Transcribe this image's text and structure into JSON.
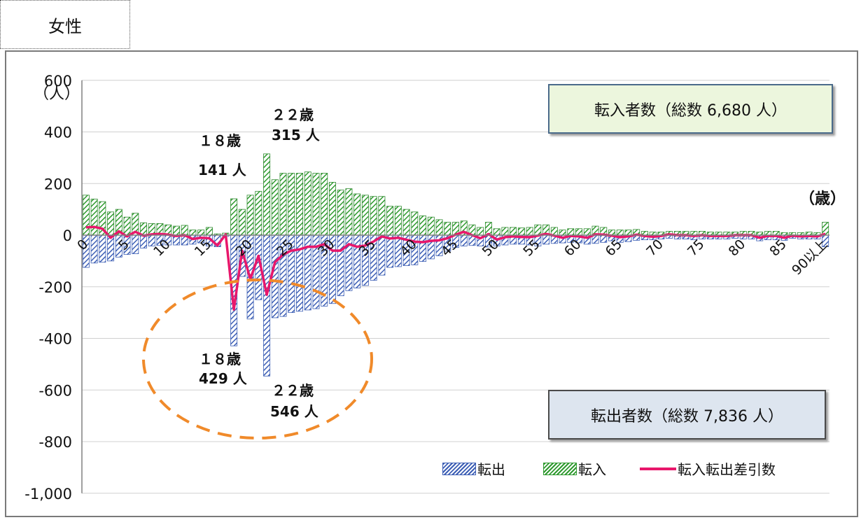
{
  "header": {
    "tab_label": "女性"
  },
  "chart_data": {
    "type": "bar",
    "y_unit": "（人）",
    "x_unit": "（歳）",
    "ylim": [
      -1000,
      600
    ],
    "y_ticks": [
      "600",
      "400",
      "200",
      "0",
      "-200",
      "-400",
      "-600",
      "-800",
      "-1,000"
    ],
    "x_tick_labels": [
      "0",
      "5",
      "10",
      "15",
      "20",
      "25",
      "30",
      "35",
      "40",
      "45",
      "50",
      "55",
      "60",
      "65",
      "70",
      "75",
      "80",
      "85",
      "90以上"
    ],
    "categories": [
      "0",
      "1",
      "2",
      "3",
      "4",
      "5",
      "6",
      "7",
      "8",
      "9",
      "10",
      "11",
      "12",
      "13",
      "14",
      "15",
      "16",
      "17",
      "18",
      "19",
      "20",
      "21",
      "22",
      "23",
      "24",
      "25",
      "26",
      "27",
      "28",
      "29",
      "30",
      "31",
      "32",
      "33",
      "34",
      "35",
      "36",
      "37",
      "38",
      "39",
      "40",
      "41",
      "42",
      "43",
      "44",
      "45",
      "46",
      "47",
      "48",
      "49",
      "50",
      "51",
      "52",
      "53",
      "54",
      "55",
      "56",
      "57",
      "58",
      "59",
      "60",
      "61",
      "62",
      "63",
      "64",
      "65",
      "66",
      "67",
      "68",
      "69",
      "70",
      "71",
      "72",
      "73",
      "74",
      "75",
      "76",
      "77",
      "78",
      "79",
      "80",
      "81",
      "82",
      "83",
      "84",
      "85",
      "86",
      "87",
      "88",
      "89",
      "90以上"
    ],
    "series": [
      {
        "name": "転出",
        "color": "#4a6fc0",
        "values": [
          -125,
          -108,
          -105,
          -100,
          -85,
          -75,
          -72,
          -50,
          -42,
          -40,
          -38,
          -38,
          -38,
          -35,
          -30,
          -42,
          -45,
          -5,
          -429,
          -160,
          -325,
          -250,
          -546,
          -320,
          -315,
          -300,
          -295,
          -290,
          -285,
          -275,
          -265,
          -235,
          -215,
          -205,
          -195,
          -175,
          -155,
          -125,
          -122,
          -118,
          -115,
          -102,
          -92,
          -80,
          -62,
          -48,
          -42,
          -40,
          -42,
          -46,
          -42,
          -38,
          -35,
          -35,
          -38,
          -42,
          -35,
          -32,
          -30,
          -28,
          -30,
          -35,
          -32,
          -28,
          -22,
          -28,
          -25,
          -20,
          -18,
          -18,
          -15,
          -12,
          -15,
          -15,
          -18,
          -15,
          -15,
          -15,
          -15,
          -12,
          -15,
          -15,
          -22,
          -18,
          -18,
          -20,
          -12,
          -15,
          -15,
          -15,
          -45
        ]
      },
      {
        "name": "転入",
        "color": "#3fa33f",
        "values": [
          155,
          140,
          130,
          90,
          100,
          70,
          85,
          48,
          45,
          45,
          40,
          35,
          38,
          20,
          20,
          30,
          5,
          8,
          141,
          100,
          155,
          170,
          315,
          215,
          240,
          240,
          240,
          245,
          240,
          240,
          205,
          175,
          180,
          160,
          155,
          150,
          150,
          112,
          112,
          100,
          90,
          75,
          70,
          60,
          50,
          50,
          55,
          40,
          30,
          50,
          25,
          30,
          30,
          28,
          30,
          40,
          40,
          30,
          20,
          25,
          25,
          25,
          35,
          30,
          20,
          20,
          20,
          22,
          15,
          12,
          12,
          15,
          15,
          15,
          15,
          15,
          12,
          12,
          12,
          12,
          15,
          15,
          12,
          15,
          15,
          10,
          10,
          10,
          12,
          10,
          50
        ]
      },
      {
        "name": "転入転出差引数",
        "color": "#e8176b",
        "values": [
          30,
          32,
          25,
          -10,
          15,
          -5,
          13,
          -2,
          3,
          5,
          2,
          -3,
          0,
          -15,
          -10,
          -12,
          -40,
          3,
          -288,
          -60,
          -170,
          -80,
          -231,
          -105,
          -75,
          -60,
          -55,
          -45,
          -45,
          -35,
          -60,
          -60,
          -35,
          -45,
          -40,
          -25,
          -5,
          -13,
          -10,
          -18,
          -25,
          -27,
          -22,
          -20,
          -12,
          2,
          13,
          0,
          -12,
          4,
          -17,
          -8,
          -5,
          -7,
          -8,
          -2,
          5,
          -2,
          -10,
          -3,
          -5,
          -10,
          3,
          2,
          -2,
          -8,
          -5,
          2,
          -3,
          -6,
          -3,
          3,
          0,
          0,
          -3,
          0,
          -3,
          -3,
          -3,
          0,
          0,
          0,
          -10,
          -3,
          -3,
          -10,
          -2,
          -5,
          -3,
          -5,
          5
        ]
      }
    ],
    "annotations": {
      "in18": {
        "age": "１８歳",
        "count": "141 人"
      },
      "in22": {
        "age": "２２歳",
        "count": "315 人"
      },
      "out18": {
        "age": "１８歳",
        "count": "429 人"
      },
      "out22": {
        "age": "２２歳",
        "count": "546 人"
      }
    },
    "boxes": {
      "inflow_total": "転入者数（総数 6,680 人）",
      "outflow_total": "転出者数（総数 7,836 人）"
    },
    "legend": {
      "placement": "bottom-right",
      "items": [
        "転出",
        "転入",
        "転入転出差引数"
      ]
    }
  }
}
